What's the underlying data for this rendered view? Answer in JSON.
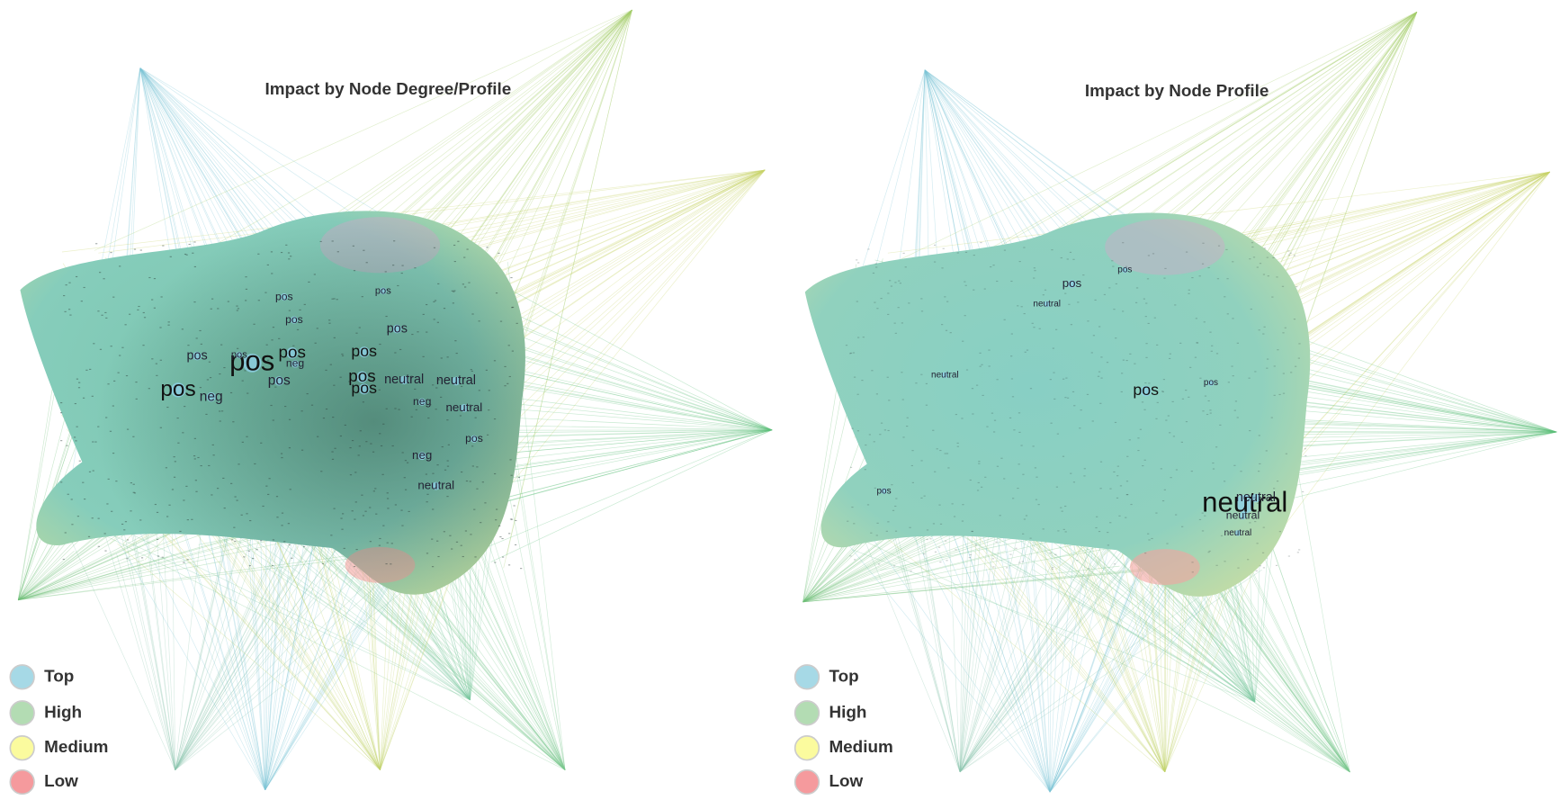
{
  "panels": [
    {
      "title": "Impact by Node Degree/Profile",
      "legend": [
        {
          "label": "Top",
          "color": "#a6d9e6"
        },
        {
          "label": "High",
          "color": "#b3dcb3"
        },
        {
          "label": "Medium",
          "color": "#fbfb9e"
        },
        {
          "label": "Low",
          "color": "#f59a9d"
        }
      ],
      "node_labels": [
        "pos",
        "pos",
        "pos",
        "pos",
        "neg",
        "pos",
        "neg",
        "pos",
        "pos",
        "pos",
        "pos",
        "pos",
        "neutral",
        "neutral",
        "neutral",
        "neg",
        "pos",
        "pos",
        "pos",
        "neg",
        "neutral",
        "pos"
      ]
    },
    {
      "title": "Impact by Node Profile",
      "legend": [
        {
          "label": "Top",
          "color": "#a6d9e6"
        },
        {
          "label": "High",
          "color": "#b3dcb3"
        },
        {
          "label": "Medium",
          "color": "#fbfb9e"
        },
        {
          "label": "Low",
          "color": "#f59a9d"
        }
      ],
      "node_labels": [
        "pos",
        "pos",
        "neutral",
        "neutral",
        "pos",
        "pos",
        "pos",
        "neutral",
        "neutral",
        "neutral",
        "neutral"
      ]
    }
  ]
}
